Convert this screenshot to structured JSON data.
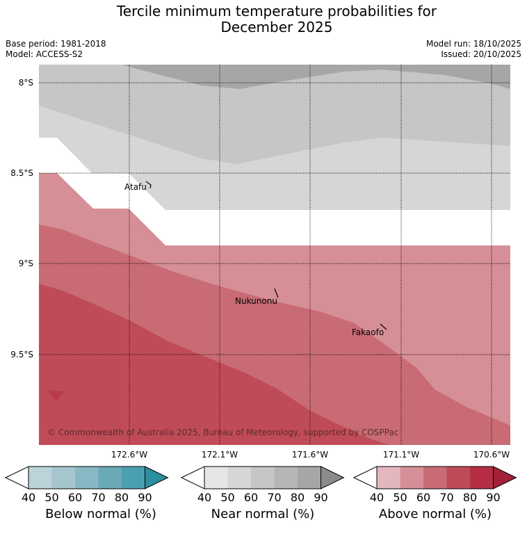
{
  "title": {
    "line1": "Tercile minimum temperature probabilities for",
    "line2": "December 2025"
  },
  "meta": {
    "base_period": "Base period: 1981-2018",
    "model": "Model: ACCESS-S2",
    "model_run": "Model run: 18/10/2025",
    "issued": "Issued: 20/10/2025"
  },
  "map": {
    "lat_labels": [
      "8°S",
      "8.5°S",
      "9°S",
      "9.5°S"
    ],
    "lon_labels": [
      "172.6°W",
      "172.1°W",
      "171.6°W",
      "171.1°W",
      "170.6°W"
    ],
    "places": [
      "Atafu",
      "Nukunonu",
      "Fakaofo"
    ],
    "copyright": "© Commonwealth of Australia 2025, Bureau of Meteorology, supported by COSPPac"
  },
  "legends": {
    "ticks": [
      "40",
      "50",
      "60",
      "70",
      "80",
      "90"
    ],
    "below": {
      "label": "Below normal (%)",
      "colors": [
        "#ffffff",
        "#bcd3da",
        "#a6c6cd",
        "#88b8c3",
        "#6aa9b6",
        "#4aa0b1",
        "#2b8f9f"
      ]
    },
    "near": {
      "label": "Near normal (%)",
      "colors": [
        "#ffffff",
        "#e6e6e6",
        "#d6d6d6",
        "#c6c6c6",
        "#b6b6b6",
        "#a6a6a6",
        "#8c8c8c"
      ]
    },
    "above": {
      "label": "Above normal (%)",
      "colors": [
        "#ffffff",
        "#e4b7be",
        "#d68f96",
        "#c86b74",
        "#c04b58",
        "#b52e45",
        "#a3203a"
      ]
    }
  }
}
